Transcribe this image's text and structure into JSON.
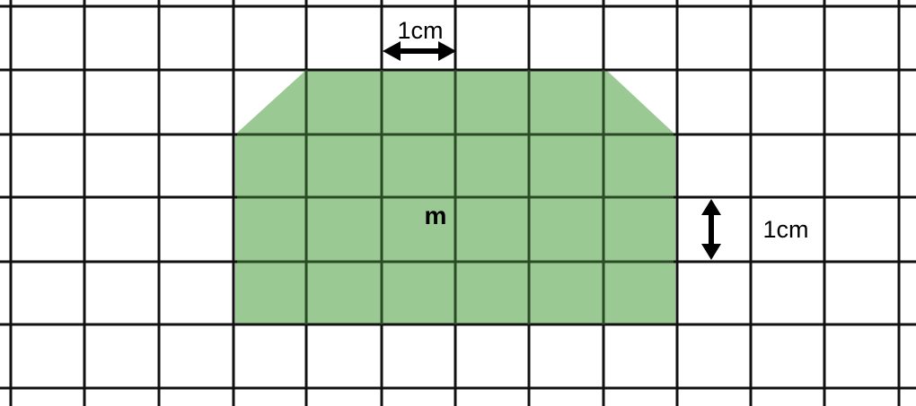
{
  "shape_label": "m",
  "horizontal_scale_label": "1cm",
  "vertical_scale_label": "1cm",
  "colors": {
    "background": "#ffffff",
    "grid": "#111111",
    "shape_fill": "#9bc993",
    "shape_grid": "#2a4a25",
    "arrow": "#000000"
  }
}
